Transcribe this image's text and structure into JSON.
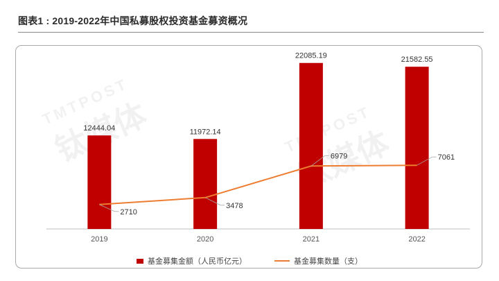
{
  "page_title": "图表1 : 2019-2022年中国私募股权投资基金募资概况",
  "watermark": {
    "en": "TMTPOST",
    "cn": "钛媒体"
  },
  "colors": {
    "bar": "#c00000",
    "line": "#ed7d31",
    "axis": "#bfbfbf",
    "leader": "#a6a6a6"
  },
  "chart_data": {
    "type": "bar",
    "title": "图表1 : 2019-2022年中国私募股权投资基金募资概况",
    "categories": [
      "2019",
      "2020",
      "2021",
      "2022"
    ],
    "series": [
      {
        "name": "基金募集金额（人民币亿元）",
        "type": "bar",
        "axis": "left",
        "values": [
          12444.04,
          11972.14,
          22085.19,
          21582.55
        ],
        "labels": [
          "12444.04",
          "11972.14",
          "22085.19",
          "21582.55"
        ]
      },
      {
        "name": "基金募集数量（支）",
        "type": "line",
        "axis": "right",
        "values": [
          2710,
          3478,
          6979,
          7061
        ],
        "labels": [
          "2710",
          "3478",
          "6979",
          "7061"
        ]
      }
    ],
    "ylim_left": [
      0,
      24000
    ],
    "ylim_right": [
      0,
      20000
    ],
    "grid": false,
    "legend_position": "bottom"
  }
}
